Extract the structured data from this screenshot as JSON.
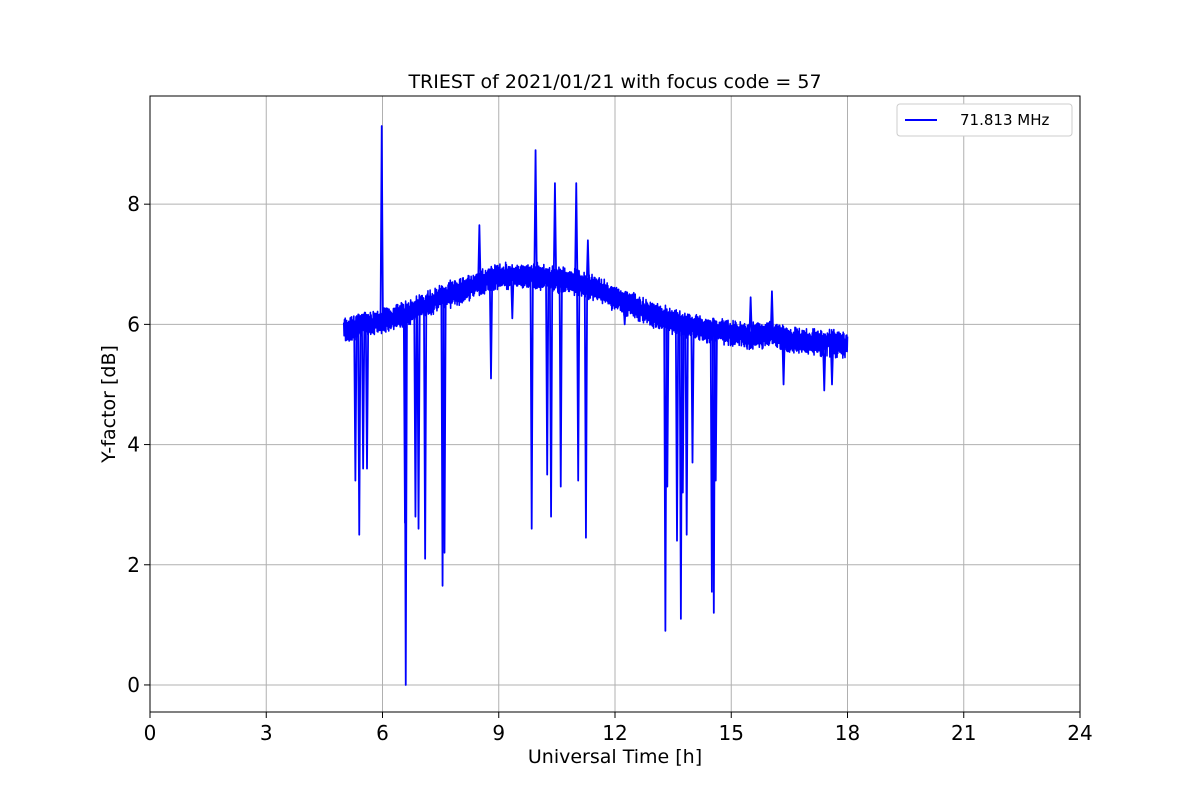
{
  "chart_data": {
    "type": "line",
    "title": "TRIEST of 2021/01/21 with focus code = 57",
    "xlabel": "Universal Time [h]",
    "ylabel": "Y-factor [dB]",
    "xlim": [
      0,
      24
    ],
    "ylim": [
      -0.45,
      9.8
    ],
    "xticks": [
      0,
      3,
      6,
      9,
      12,
      15,
      18,
      21,
      24
    ],
    "yticks": [
      0,
      2,
      4,
      6,
      8
    ],
    "grid": true,
    "legend_position": "top-right",
    "series": [
      {
        "name": "71.813 MHz",
        "color": "#0000ff",
        "baseline": {
          "x": [
            5.0,
            5.5,
            6.0,
            6.5,
            7.0,
            7.5,
            8.0,
            8.5,
            9.0,
            9.5,
            10.0,
            10.5,
            11.0,
            11.5,
            12.0,
            12.5,
            13.0,
            13.5,
            14.0,
            14.5,
            15.0,
            15.5,
            16.0,
            16.5,
            17.0,
            17.5,
            18.0
          ],
          "y": [
            5.9,
            6.0,
            6.05,
            6.15,
            6.3,
            6.45,
            6.55,
            6.7,
            6.8,
            6.8,
            6.8,
            6.75,
            6.7,
            6.6,
            6.45,
            6.3,
            6.15,
            6.05,
            5.95,
            5.9,
            5.85,
            5.8,
            5.85,
            5.75,
            5.7,
            5.7,
            5.65
          ]
        },
        "spikes": [
          {
            "x": 5.3,
            "y": 3.4
          },
          {
            "x": 5.4,
            "y": 2.5
          },
          {
            "x": 5.5,
            "y": 3.6
          },
          {
            "x": 5.6,
            "y": 3.6
          },
          {
            "x": 5.98,
            "y": 9.3
          },
          {
            "x": 6.58,
            "y": 2.7
          },
          {
            "x": 6.6,
            "y": 0.0
          },
          {
            "x": 6.85,
            "y": 2.8
          },
          {
            "x": 6.93,
            "y": 2.6
          },
          {
            "x": 7.1,
            "y": 2.1
          },
          {
            "x": 7.55,
            "y": 1.65
          },
          {
            "x": 7.6,
            "y": 2.2
          },
          {
            "x": 8.5,
            "y": 7.65
          },
          {
            "x": 8.8,
            "y": 5.1
          },
          {
            "x": 9.35,
            "y": 6.1
          },
          {
            "x": 9.85,
            "y": 2.6
          },
          {
            "x": 9.95,
            "y": 8.9
          },
          {
            "x": 10.25,
            "y": 3.5
          },
          {
            "x": 10.35,
            "y": 2.8
          },
          {
            "x": 10.45,
            "y": 8.35
          },
          {
            "x": 10.6,
            "y": 3.3
          },
          {
            "x": 11.0,
            "y": 8.35
          },
          {
            "x": 11.05,
            "y": 3.4
          },
          {
            "x": 11.25,
            "y": 2.45
          },
          {
            "x": 11.3,
            "y": 7.4
          },
          {
            "x": 12.25,
            "y": 6.0
          },
          {
            "x": 13.3,
            "y": 0.9
          },
          {
            "x": 13.35,
            "y": 3.3
          },
          {
            "x": 13.6,
            "y": 2.4
          },
          {
            "x": 13.7,
            "y": 1.1
          },
          {
            "x": 13.75,
            "y": 3.2
          },
          {
            "x": 13.85,
            "y": 2.5
          },
          {
            "x": 14.0,
            "y": 3.7
          },
          {
            "x": 14.5,
            "y": 1.55
          },
          {
            "x": 14.55,
            "y": 1.2
          },
          {
            "x": 14.6,
            "y": 3.4
          },
          {
            "x": 15.5,
            "y": 6.45
          },
          {
            "x": 16.05,
            "y": 6.55
          },
          {
            "x": 16.35,
            "y": 5.0
          },
          {
            "x": 17.4,
            "y": 4.9
          },
          {
            "x": 17.6,
            "y": 5.0
          }
        ]
      }
    ]
  }
}
